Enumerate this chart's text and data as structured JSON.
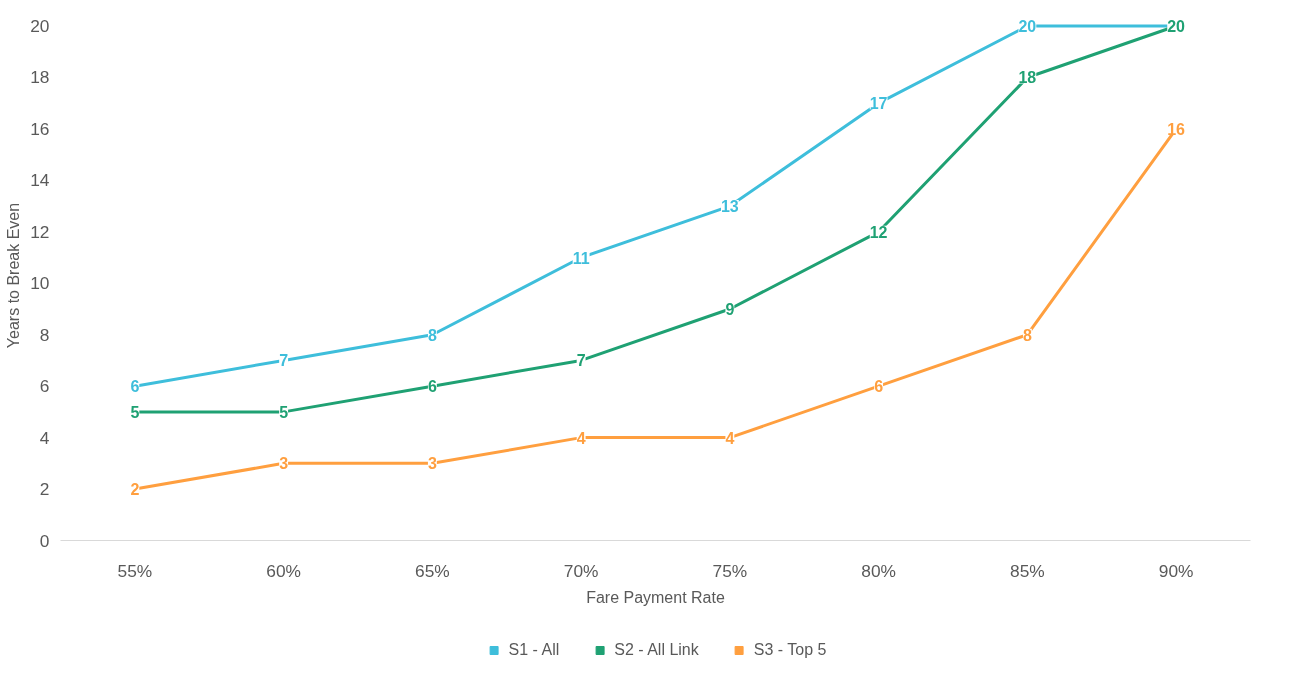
{
  "chart_data": {
    "type": "line",
    "xlabel": "Fare Payment Rate",
    "ylabel": "Years to Break Even",
    "categories": [
      "55%",
      "60%",
      "65%",
      "70%",
      "75%",
      "80%",
      "85%",
      "90%"
    ],
    "series": [
      {
        "name": "S1 - All",
        "color": "#3ebedb",
        "values": [
          6,
          7,
          8,
          11,
          13,
          17,
          20,
          20
        ],
        "value_labels": [
          "6",
          "7",
          "8",
          "11",
          "13",
          "17",
          "20",
          null
        ]
      },
      {
        "name": "S2 - All Link",
        "color": "#1fa173",
        "values": [
          5,
          5,
          6,
          7,
          9,
          12,
          18,
          20
        ],
        "value_labels": [
          "5",
          "5",
          "6",
          "7",
          "9",
          "12",
          "18",
          "20"
        ]
      },
      {
        "name": "S3 - Top 5",
        "color": "#ff9f3f",
        "values": [
          2,
          3,
          3,
          4,
          4,
          6,
          8,
          16
        ],
        "value_labels": [
          "2",
          "3",
          "3",
          "4",
          "4",
          "6",
          "8",
          "16"
        ]
      }
    ],
    "ylim": [
      0,
      20
    ],
    "yticks": [
      0,
      2,
      4,
      6,
      8,
      10,
      12,
      14,
      16,
      18,
      20
    ],
    "grid": false,
    "legend": "bottom",
    "marker": "square",
    "line_style": "solid"
  }
}
